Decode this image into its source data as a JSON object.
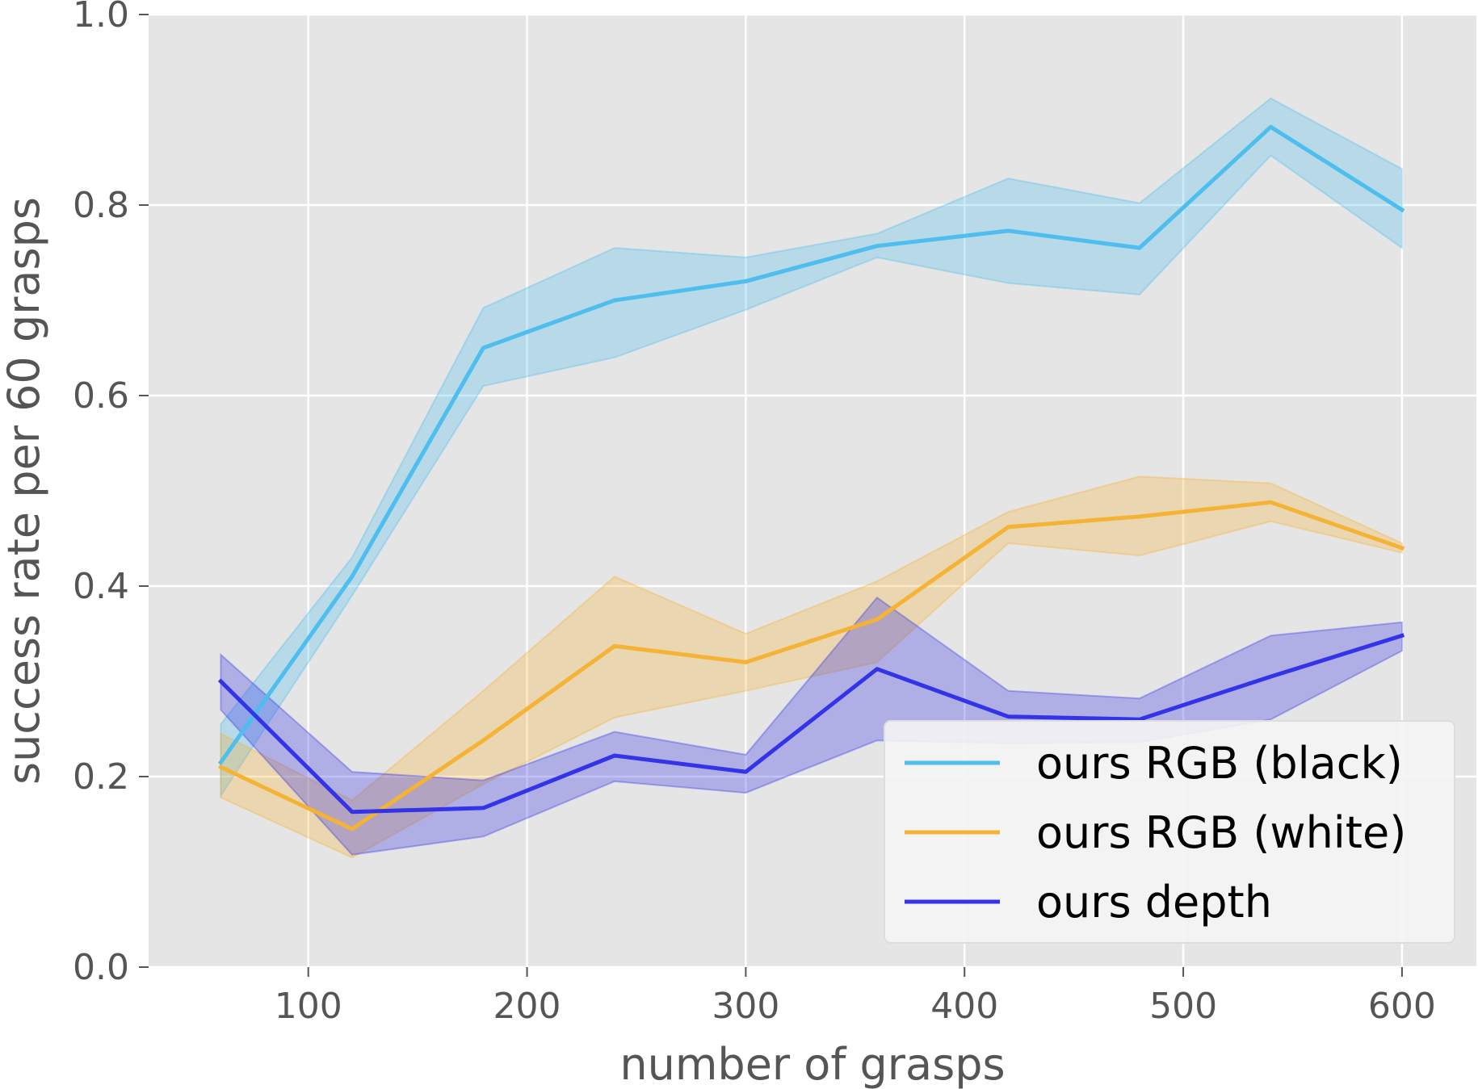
{
  "chart_data": {
    "type": "line",
    "title": "",
    "xlabel": "number of grasps",
    "ylabel": "success rate per 60 grasps",
    "xlim": [
      27,
      634
    ],
    "ylim": [
      0.0,
      1.0
    ],
    "xticks": [
      100,
      200,
      300,
      400,
      500,
      600
    ],
    "yticks": [
      0.0,
      0.2,
      0.4,
      0.6,
      0.8,
      1.0
    ],
    "xtick_labels": [
      "100",
      "200",
      "300",
      "400",
      "500",
      "600"
    ],
    "ytick_labels": [
      "0.0",
      "0.2",
      "0.4",
      "0.6",
      "0.8",
      "1.0"
    ],
    "grid": true,
    "legend_position": "lower-right",
    "x": [
      60,
      120,
      180,
      240,
      300,
      360,
      420,
      480,
      540,
      600
    ],
    "series": [
      {
        "name": "ours RGB (black)",
        "color": "#4dbeee",
        "values": [
          0.215,
          0.41,
          0.65,
          0.7,
          0.72,
          0.757,
          0.773,
          0.755,
          0.882,
          0.795
        ],
        "lower": [
          0.18,
          0.39,
          0.61,
          0.64,
          0.69,
          0.745,
          0.718,
          0.706,
          0.852,
          0.755
        ],
        "upper": [
          0.255,
          0.43,
          0.692,
          0.755,
          0.745,
          0.77,
          0.828,
          0.802,
          0.912,
          0.838
        ]
      },
      {
        "name": "ours RGB (white)",
        "color": "#f5b335",
        "values": [
          0.21,
          0.145,
          0.238,
          0.337,
          0.32,
          0.365,
          0.462,
          0.473,
          0.488,
          0.44
        ],
        "lower": [
          0.178,
          0.115,
          0.192,
          0.262,
          0.29,
          0.32,
          0.445,
          0.432,
          0.468,
          0.435
        ],
        "upper": [
          0.245,
          0.175,
          0.29,
          0.41,
          0.35,
          0.405,
          0.478,
          0.515,
          0.508,
          0.445
        ]
      },
      {
        "name": "ours depth",
        "color": "#3333e8",
        "values": [
          0.3,
          0.163,
          0.167,
          0.222,
          0.205,
          0.313,
          0.263,
          0.26,
          0.305,
          0.348
        ],
        "lower": [
          0.27,
          0.118,
          0.137,
          0.195,
          0.183,
          0.238,
          0.235,
          0.236,
          0.26,
          0.332
        ],
        "upper": [
          0.328,
          0.205,
          0.196,
          0.247,
          0.223,
          0.388,
          0.29,
          0.282,
          0.348,
          0.362
        ]
      }
    ]
  }
}
